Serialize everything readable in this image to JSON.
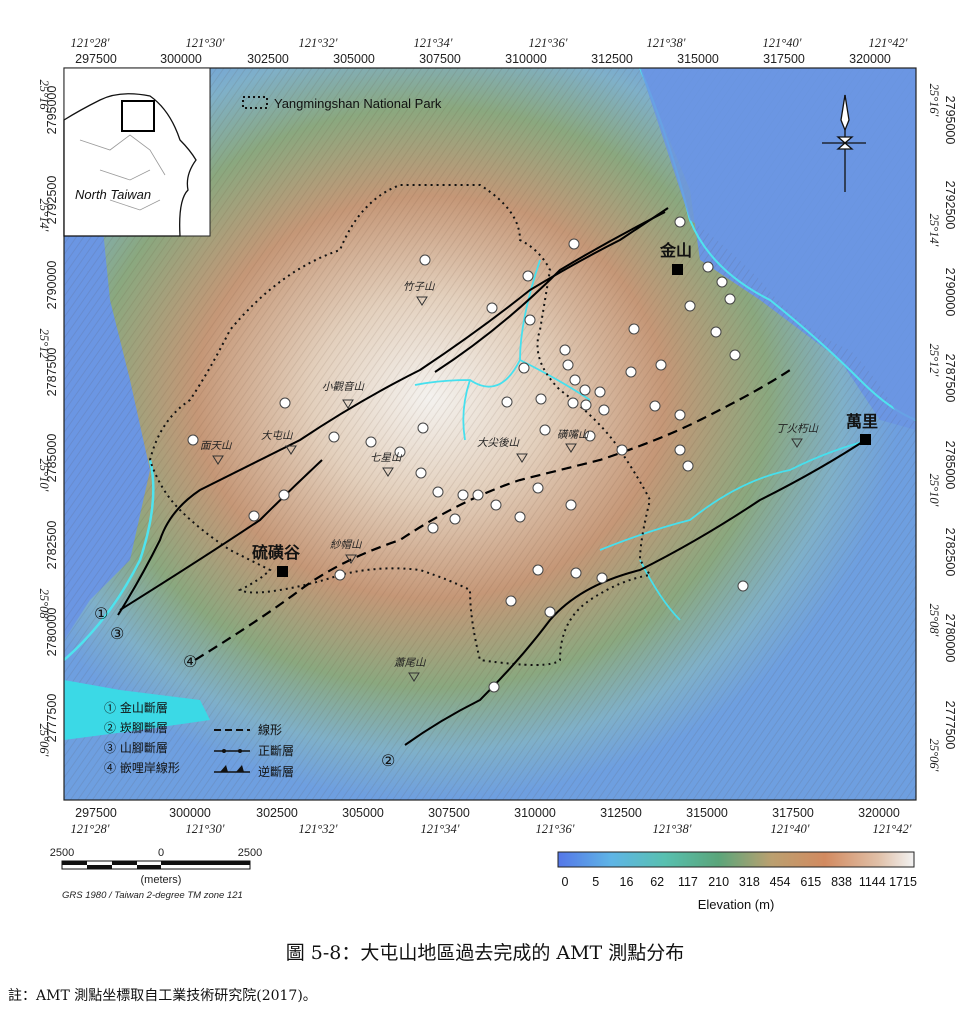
{
  "map": {
    "park_legend": "Yangmingshan National Park",
    "inset_label": "North Taiwan",
    "lon_labels": [
      "121°28'",
      "121°30'",
      "121°32'",
      "121°34'",
      "121°36'",
      "121°38'",
      "121°40'",
      "121°42'"
    ],
    "easting_labels": [
      "297500",
      "300000",
      "302500",
      "305000",
      "307500",
      "310000",
      "312500",
      "315000",
      "317500",
      "320000"
    ],
    "lat_labels": [
      "25°16'",
      "25°14'",
      "25°12'",
      "25°10'",
      "25°08'",
      "25°06'"
    ],
    "northing_labels": [
      "2795000",
      "2792500",
      "2790000",
      "2787500",
      "2785000",
      "2782500",
      "2780000",
      "2777500"
    ],
    "towns": [
      {
        "name": "金山"
      },
      {
        "name": "硫磺谷"
      },
      {
        "name": "萬里"
      }
    ],
    "peaks": [
      "竹子山",
      "小觀音山",
      "大屯山",
      "面天山",
      "七星山",
      "大尖後山",
      "磺嘴山",
      "紗帽山",
      "丁火朽山",
      "蕭尾山"
    ],
    "fault_numbers": [
      "①",
      "②",
      "③",
      "④"
    ],
    "legend_faults": [
      "① 金山斷層",
      "② 崁腳斷層",
      "③ 山腳斷層",
      "④ 嵌哩岸線形"
    ],
    "legend_lines": [
      "線形",
      "正斷層",
      "逆斷層"
    ],
    "scale": {
      "left": "2500",
      "mid": "0",
      "right": "2500",
      "unit": "(meters)",
      "crs": "GRS 1980 / Taiwan 2-degree TM zone 121"
    },
    "elevation": {
      "ticks": [
        "0",
        "5",
        "16",
        "62",
        "117",
        "210",
        "318",
        "454",
        "615",
        "838",
        "1144",
        "1715"
      ],
      "title": "Elevation (m)"
    },
    "colors": {
      "water": "#5b8fe6",
      "coast": "#44e4f0",
      "low": "#7ea6d8",
      "mid": "#b48a6a",
      "high": "#f1f1f1",
      "fault": "#000000"
    }
  },
  "caption": "圖 5-8：大屯山地區過去完成的 AMT 測點分布",
  "note": "註：AMT 測點坐標取自工業技術研究院(2017)。"
}
